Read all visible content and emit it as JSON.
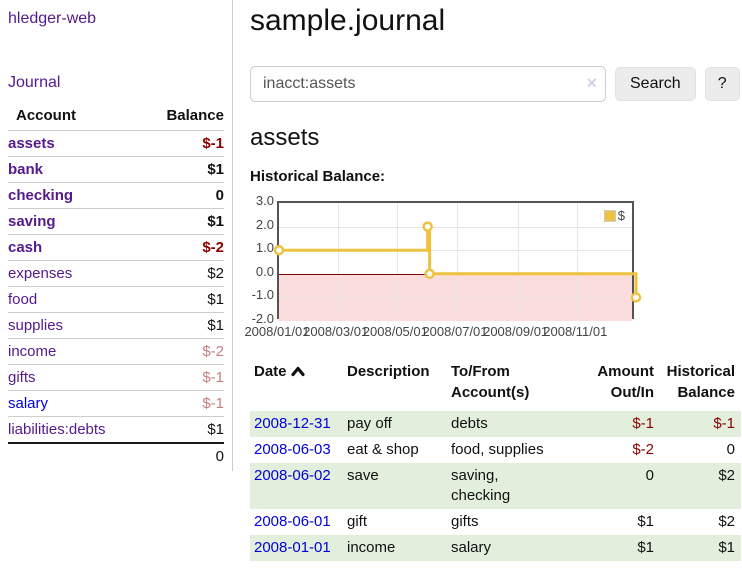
{
  "palette": {
    "link_visited": "#551a8b",
    "link_unvisited": "#0000dd",
    "negative": "#8b0000",
    "negative_dim": "#c57f7f",
    "row_stripe": "#e2efdc",
    "chart_line": "#edc240",
    "chart_negative_region": "#fcdddd",
    "chart_zero_line": "#800000"
  },
  "sidebar": {
    "app_title": "hledger-web",
    "journal_label": "Journal",
    "table": {
      "header_account": "Account",
      "header_balance": "Balance",
      "rows": [
        {
          "name": "assets",
          "depth": 1,
          "balance": "$-1",
          "matched": true,
          "link": "visited",
          "balance_style": "neg"
        },
        {
          "name": "bank",
          "depth": 2,
          "balance": "$1",
          "matched": true,
          "link": "visited",
          "balance_style": "pos"
        },
        {
          "name": "checking",
          "depth": 3,
          "balance": "0",
          "matched": true,
          "link": "visited",
          "balance_style": "pos"
        },
        {
          "name": "saving",
          "depth": 3,
          "balance": "$1",
          "matched": true,
          "link": "visited",
          "balance_style": "pos"
        },
        {
          "name": "cash",
          "depth": 2,
          "balance": "$-2",
          "matched": true,
          "link": "visited",
          "balance_style": "neg"
        },
        {
          "name": "expenses",
          "depth": 1,
          "balance": "$2",
          "matched": false,
          "link": "visited",
          "balance_style": "pos"
        },
        {
          "name": "food",
          "depth": 2,
          "balance": "$1",
          "matched": false,
          "link": "visited",
          "balance_style": "pos"
        },
        {
          "name": "supplies",
          "depth": 2,
          "balance": "$1",
          "matched": false,
          "link": "visited",
          "balance_style": "pos"
        },
        {
          "name": "income",
          "depth": 1,
          "balance": "$-2",
          "matched": false,
          "link": "visited",
          "balance_style": "neg-dim"
        },
        {
          "name": "gifts",
          "depth": 2,
          "balance": "$-1",
          "matched": false,
          "link": "visited",
          "balance_style": "neg-dim"
        },
        {
          "name": "salary",
          "depth": 2,
          "balance": "$-1",
          "matched": false,
          "link": "unvisited",
          "balance_style": "neg-dim"
        },
        {
          "name": "liabilities:debts",
          "depth": 1,
          "balance": "$1",
          "matched": false,
          "link": "visited",
          "balance_style": "pos"
        }
      ],
      "total": "0"
    }
  },
  "main": {
    "title": "sample.journal",
    "search": {
      "value": "inacct:assets",
      "clear_icon": "×",
      "button_label": "Search",
      "help_label": "?"
    },
    "account_heading": "assets",
    "chart_label": "Historical Balance:",
    "register": {
      "headers": {
        "date": "Date",
        "description": "Description",
        "accounts": "To/From Account(s)",
        "amount": "Amount Out/In",
        "balance": "Historical Balance"
      },
      "sort": {
        "column": "date",
        "direction": "ascending"
      },
      "rows": [
        {
          "date": "2008-12-31",
          "description": "pay off",
          "accounts": "debts",
          "amount": "$-1",
          "balance": "$-1",
          "amount_neg": true,
          "balance_neg": true
        },
        {
          "date": "2008-06-03",
          "description": "eat & shop",
          "accounts": "food, supplies",
          "amount": "$-2",
          "balance": "0",
          "amount_neg": true,
          "balance_neg": false
        },
        {
          "date": "2008-06-02",
          "description": "save",
          "accounts": "saving, checking",
          "amount": "0",
          "balance": "$2",
          "amount_neg": false,
          "balance_neg": false
        },
        {
          "date": "2008-06-01",
          "description": "gift",
          "accounts": "gifts",
          "amount": "$1",
          "balance": "$2",
          "amount_neg": false,
          "balance_neg": false
        },
        {
          "date": "2008-01-01",
          "description": "income",
          "accounts": "salary",
          "amount": "$1",
          "balance": "$1",
          "amount_neg": false,
          "balance_neg": false
        }
      ]
    }
  },
  "chart_data": {
    "type": "line",
    "step": true,
    "title": "Historical Balance",
    "legend": {
      "position": "top-right",
      "entries": [
        "$"
      ]
    },
    "series": [
      {
        "name": "$",
        "color": "#edc240",
        "points": [
          {
            "x": "2008-01-01",
            "y": 1
          },
          {
            "x": "2008-06-01",
            "y": 2
          },
          {
            "x": "2008-06-03",
            "y": 0
          },
          {
            "x": "2008-12-31",
            "y": -1
          }
        ]
      }
    ],
    "xlim": [
      "2008-01-01",
      "2008-12-31"
    ],
    "ylim": [
      -2,
      3
    ],
    "x_ticks": [
      "2008/01/01",
      "2008/03/01",
      "2008/05/01",
      "2008/07/01",
      "2008/09/01",
      "2008/11/01"
    ],
    "y_ticks": [
      "3.0",
      "2.0",
      "1.0",
      "0.0",
      "-1.0",
      "-2.0"
    ],
    "grid": true,
    "negative_region": true
  }
}
